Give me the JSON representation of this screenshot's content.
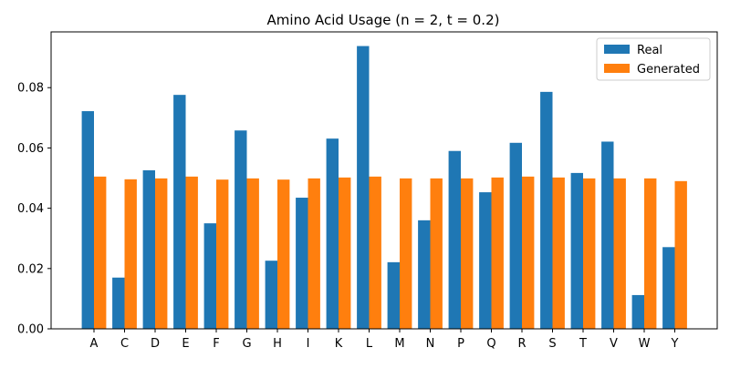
{
  "chart_data": {
    "type": "bar",
    "title": "Amino Acid Usage (n = 2, t = 0.2)",
    "xlabel": "",
    "ylabel": "",
    "categories": [
      "A",
      "C",
      "D",
      "E",
      "F",
      "G",
      "H",
      "I",
      "K",
      "L",
      "M",
      "N",
      "P",
      "Q",
      "R",
      "S",
      "T",
      "V",
      "W",
      "Y"
    ],
    "series": [
      {
        "name": "Real",
        "color": "#1f77b4",
        "values": [
          0.0722,
          0.017,
          0.0526,
          0.0776,
          0.035,
          0.0658,
          0.0226,
          0.0435,
          0.0631,
          0.0938,
          0.0221,
          0.036,
          0.059,
          0.0453,
          0.0617,
          0.0786,
          0.0517,
          0.0621,
          0.0112,
          0.0271
        ]
      },
      {
        "name": "Generated",
        "color": "#ff7f0e",
        "values": [
          0.0505,
          0.0496,
          0.0499,
          0.0505,
          0.0495,
          0.0499,
          0.0495,
          0.0499,
          0.0502,
          0.0505,
          0.0499,
          0.0499,
          0.0499,
          0.0502,
          0.0505,
          0.0502,
          0.0499,
          0.0499,
          0.0499,
          0.049
        ]
      }
    ],
    "yticks": [
      "0.00",
      "0.02",
      "0.04",
      "0.06",
      "0.08"
    ],
    "ylim": [
      0,
      0.0985
    ],
    "grid": false,
    "legend_position": "top-right"
  }
}
